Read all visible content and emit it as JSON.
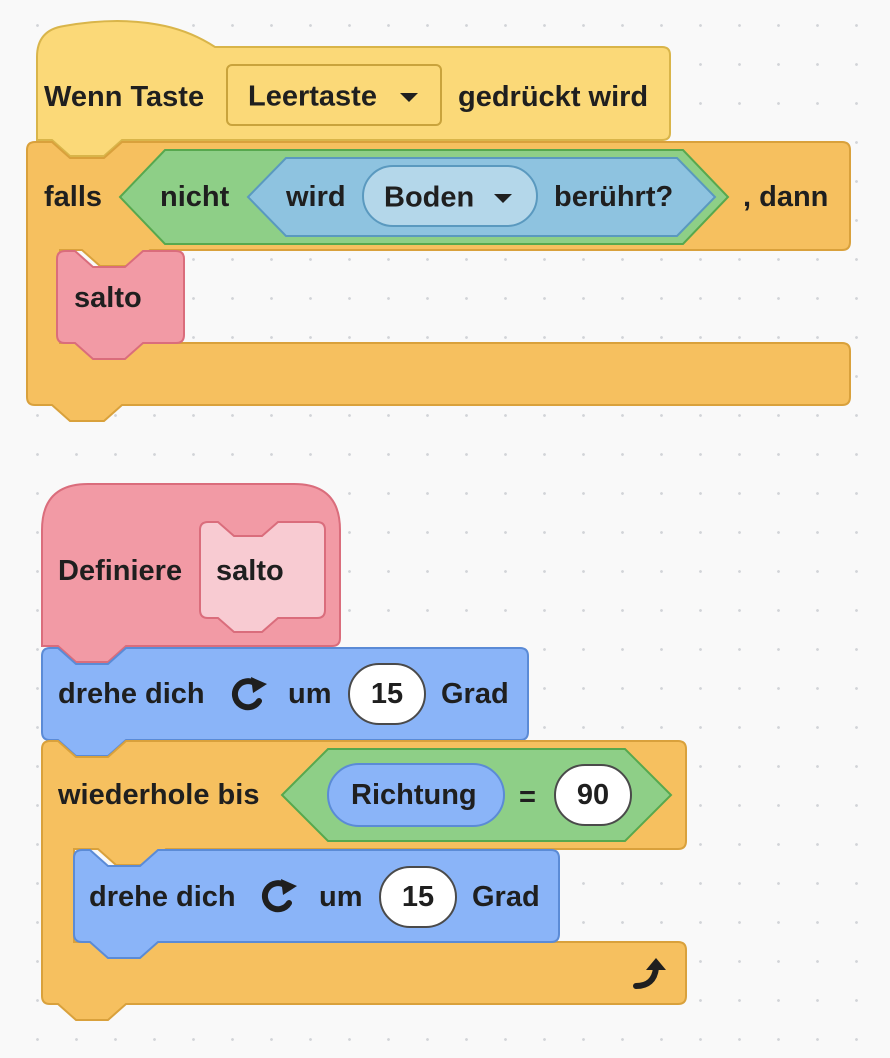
{
  "script1": {
    "hat": {
      "prefix": "Wenn Taste",
      "key_value": "Leertaste",
      "suffix": "gedrückt wird"
    },
    "if_block": {
      "keyword": "falls",
      "not_label": "nicht",
      "touching_prefix": "wird",
      "touching_value": "Boden",
      "touching_suffix": "berührt?",
      "then_label": ", dann"
    },
    "call": {
      "label": "salto"
    }
  },
  "script2": {
    "define": {
      "label": "Definiere",
      "proc_name": "salto"
    },
    "turn1": {
      "prefix": "drehe dich",
      "icon": "rotate-clockwise-icon",
      "mid": "um",
      "value": "15",
      "suffix": "Grad"
    },
    "repeat_until": {
      "label": "wiederhole bis",
      "reporter": "Richtung",
      "operator": "=",
      "compare_value": "90",
      "end_icon": "loop-arrow-icon"
    },
    "turn2": {
      "prefix": "drehe dich",
      "icon": "rotate-clockwise-icon",
      "mid": "um",
      "value": "15",
      "suffix": "Grad"
    }
  },
  "colors": {
    "events": "#FFD966",
    "control": "#F6C05F",
    "operators": "#8FD18B",
    "sensing": "#8EC3E0",
    "custom": "#F29AA5",
    "motion": "#8AB4F8"
  }
}
